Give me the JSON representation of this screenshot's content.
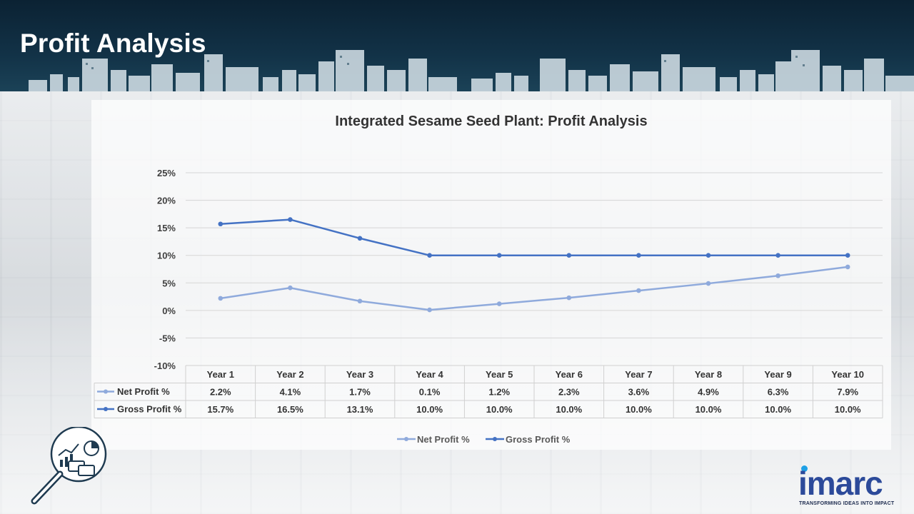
{
  "page": {
    "title": "Profit Analysis"
  },
  "logo": {
    "word": "imarc",
    "tagline": "TRANSFORMING IDEAS INTO IMPACT"
  },
  "chart_data": {
    "type": "line",
    "title": "Integrated Sesame Seed Plant: Profit Analysis",
    "categories": [
      "Year 1",
      "Year 2",
      "Year 3",
      "Year 4",
      "Year 5",
      "Year 6",
      "Year 7",
      "Year 8",
      "Year 9",
      "Year 10"
    ],
    "series": [
      {
        "name": "Net Profit %",
        "values": [
          2.2,
          4.1,
          1.7,
          0.1,
          1.2,
          2.3,
          3.6,
          4.9,
          6.3,
          7.9
        ],
        "labels": [
          "2.2%",
          "4.1%",
          "1.7%",
          "0.1%",
          "1.2%",
          "2.3%",
          "3.6%",
          "4.9%",
          "6.3%",
          "7.9%"
        ],
        "color": "#8faadc"
      },
      {
        "name": "Gross Profit %",
        "values": [
          15.7,
          16.5,
          13.1,
          10.0,
          10.0,
          10.0,
          10.0,
          10.0,
          10.0,
          10.0
        ],
        "labels": [
          "15.7%",
          "16.5%",
          "13.1%",
          "10.0%",
          "10.0%",
          "10.0%",
          "10.0%",
          "10.0%",
          "10.0%",
          "10.0%"
        ],
        "color": "#4472c4"
      }
    ],
    "ylim": [
      -10,
      25
    ],
    "yticks": [
      "25%",
      "20%",
      "15%",
      "10%",
      "5%",
      "0%",
      "-5%",
      "-10%"
    ],
    "ytick_values": [
      25,
      20,
      15,
      10,
      5,
      0,
      -5,
      -10
    ],
    "grid": true,
    "legend": "bottom",
    "data_table": true
  }
}
